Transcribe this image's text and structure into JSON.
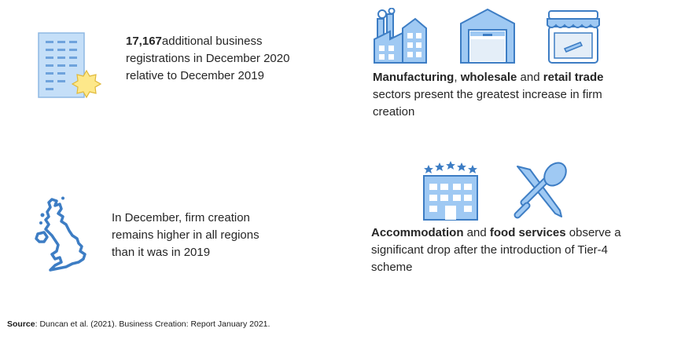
{
  "registrations": {
    "number": "17,167",
    "rest": "additional business registrations in December 2020 relative to December 2019"
  },
  "sectors_increase": {
    "s1": "Manufacturing",
    "sep1": ", ",
    "s2": "wholesale",
    "sep2": " and ",
    "s3": "retail trade",
    "rest": " sectors present the greatest increase in firm creation"
  },
  "regions": {
    "text": "In December, firm creation remains higher in all regions than it was in 2019"
  },
  "sectors_drop": {
    "s1": "Accommodation",
    "sep1": " and ",
    "s2": "food services",
    "rest": " observe a significant drop after the introduction of Tier-4 scheme"
  },
  "source": {
    "label": "Source",
    "text": ": Duncan et al. (2021). Business Creation: Report January 2021."
  },
  "icons": {
    "building": "office-building-icon",
    "new_badge": "new-badge-icon",
    "factory": "factory-icon",
    "warehouse": "warehouse-icon",
    "shop": "retail-shop-icon",
    "uk_map": "uk-map-icon",
    "hotel": "hotel-icon",
    "cutlery": "knife-spoon-icon"
  },
  "colors": {
    "icon_fill": "#9fc9f3",
    "icon_stroke": "#3d7dc4",
    "star_fill": "#fde88a"
  }
}
